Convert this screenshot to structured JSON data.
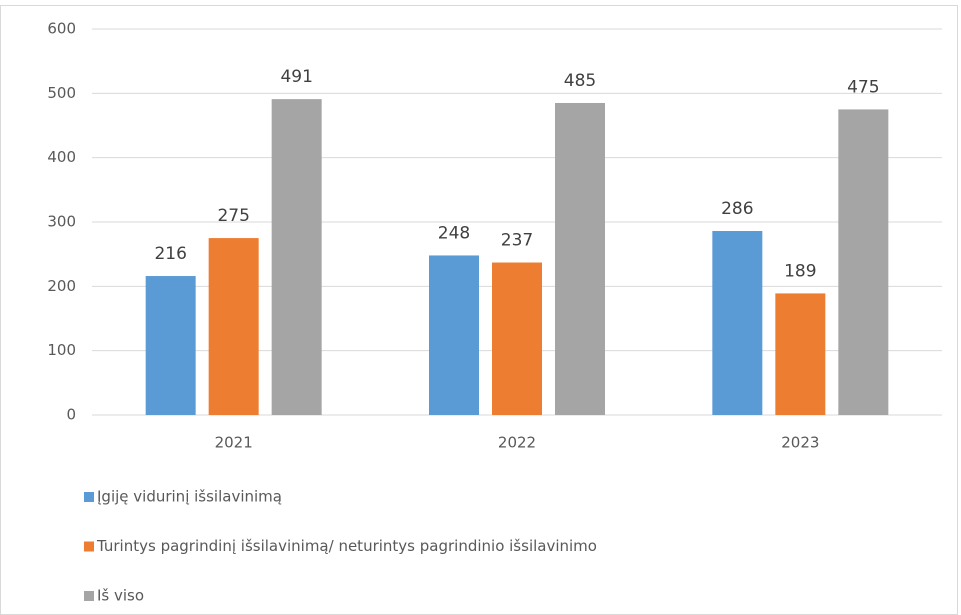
{
  "chart_data": {
    "type": "bar",
    "categories": [
      "2021",
      "2022",
      "2023"
    ],
    "series": [
      {
        "name": "Įgiję vidurinį išsilavinimą",
        "color": "#5b9bd5",
        "values": [
          216,
          248,
          286
        ]
      },
      {
        "name": "Turintys pagrindinį išsilavinimą/ neturintys pagrindinio išsilavinimo",
        "color": "#ed7d31",
        "values": [
          275,
          237,
          189
        ]
      },
      {
        "name": "Iš viso",
        "color": "#a5a5a5",
        "values": [
          491,
          485,
          475
        ]
      }
    ],
    "ylim": [
      0,
      600
    ],
    "yticks": [
      0,
      100,
      200,
      300,
      400,
      500,
      600
    ],
    "grid": true,
    "legend": "bottom"
  }
}
